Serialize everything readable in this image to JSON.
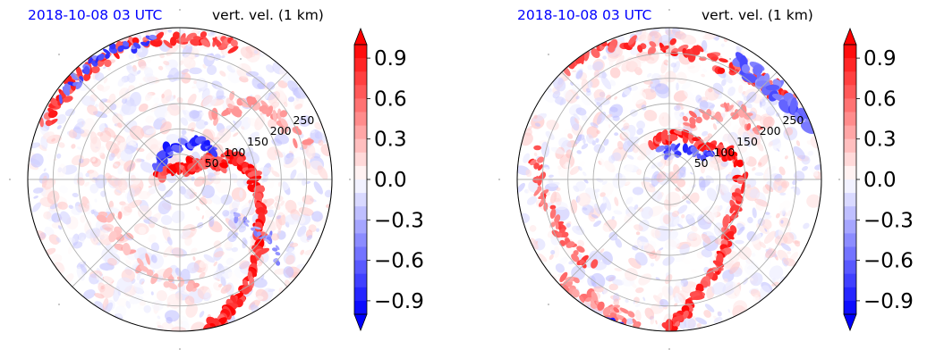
{
  "panels": [
    {
      "date_label": "2018-10-08 03 UTC",
      "var_label": "vert. vel. (1 km)"
    },
    {
      "date_label": "2018-10-08 03 UTC",
      "var_label": "vert. vel. (1 km)"
    }
  ],
  "chart_data": [
    {
      "type": "heatmap",
      "projection": "polar",
      "title_left": "2018-10-08 03 UTC",
      "title_right": "vert. vel. (1 km)",
      "radial_ticks": [
        "50",
        "100",
        "150",
        "200",
        "250"
      ],
      "radial_values": [
        50,
        100,
        150,
        200,
        250
      ],
      "grid": true,
      "colormap": "bwr",
      "colorbar": {
        "range": [
          -1.0,
          1.0
        ],
        "extend": "both",
        "ticks": [
          -0.9,
          -0.6,
          -0.3,
          0.0,
          0.3,
          0.6,
          0.9
        ],
        "tick_labels": [
          "0.9",
          "0.6",
          "0.3",
          "0.0",
          "−0.3",
          "−0.6",
          "−0.9"
        ]
      },
      "colors": {
        "positive": "#ff0000",
        "negative": "#0000ff",
        "neutral": "#ffffff",
        "date_text": "#0000ff"
      }
    },
    {
      "type": "heatmap",
      "projection": "polar",
      "title_left": "2018-10-08 03 UTC",
      "title_right": "vert. vel. (1 km)",
      "radial_ticks": [
        "50",
        "100",
        "150",
        "200",
        "250"
      ],
      "radial_values": [
        50,
        100,
        150,
        200,
        250
      ],
      "grid": true,
      "colormap": "bwr",
      "colorbar": {
        "range": [
          -1.0,
          1.0
        ],
        "extend": "both",
        "ticks": [
          -0.9,
          -0.6,
          -0.3,
          0.0,
          0.3,
          0.6,
          0.9
        ],
        "tick_labels": [
          "0.9",
          "0.6",
          "0.3",
          "0.0",
          "−0.3",
          "−0.6",
          "−0.9"
        ]
      },
      "colors": {
        "positive": "#ff0000",
        "negative": "#0000ff",
        "neutral": "#ffffff",
        "date_text": "#0000ff"
      }
    }
  ]
}
